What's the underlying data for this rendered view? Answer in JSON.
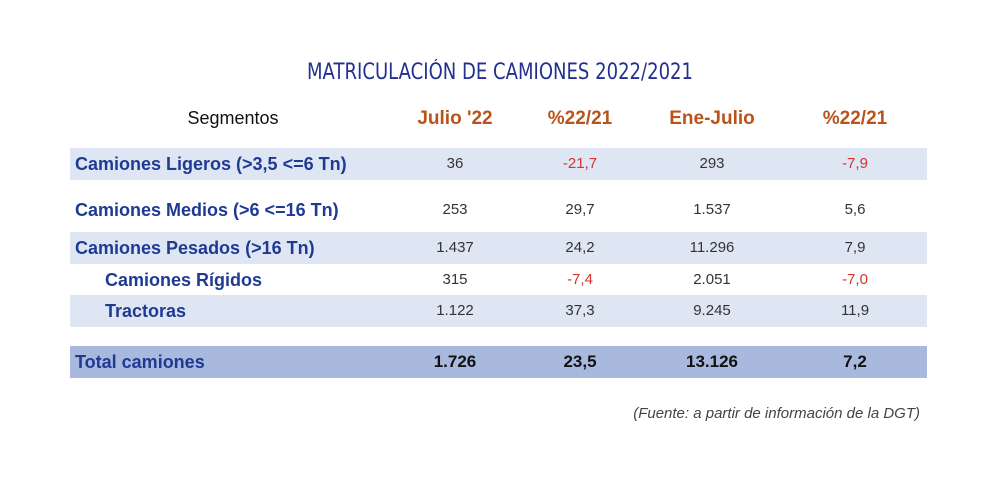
{
  "title": "MATRICULACIÓN DE CAMIONES 2022/2021",
  "table": {
    "header": [
      "Segmentos",
      "Julio '22",
      "%22/21",
      "Ene-Julio",
      "%22/21"
    ],
    "rows": [
      {
        "label": "Camiones Ligeros (>3,5 <=6 Tn)",
        "values": [
          "36",
          "-21,7",
          "293",
          "-7,9"
        ]
      },
      {
        "label": "Camiones Medios (>6 <=16 Tn)",
        "values": [
          "253",
          "29,7",
          "1.537",
          "5,6"
        ]
      },
      {
        "label": "Camiones Pesados (>16 Tn)",
        "values": [
          "1.437",
          "24,2",
          "11.296",
          "7,9"
        ]
      },
      {
        "label": "Camiones Rígidos",
        "values": [
          "315",
          "-7,4",
          "2.051",
          "-7,0"
        ]
      },
      {
        "label": "Tractoras",
        "values": [
          "1.122",
          "37,3",
          "9.245",
          "11,9"
        ]
      }
    ],
    "total": {
      "label": "Total camiones",
      "values": [
        "1.726",
        "23,5",
        "13.126",
        "7,2"
      ]
    }
  },
  "source": "(Fuente: a partir de información de la DGT)"
}
